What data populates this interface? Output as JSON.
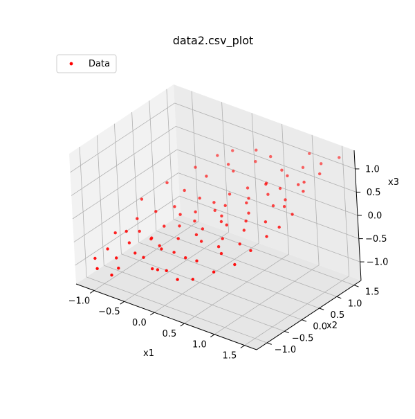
{
  "chart_data": {
    "type": "scatter",
    "projection": "3d",
    "title": "data2.csv_plot",
    "xlabel": "x1",
    "ylabel": "x2",
    "zlabel": "x3",
    "xlim": [
      -1.3,
      1.7
    ],
    "ylim": [
      -1.3,
      1.7
    ],
    "zlim": [
      -1.4,
      1.4
    ],
    "xticks": [
      -1.0,
      -0.5,
      0.0,
      0.5,
      1.0,
      1.5
    ],
    "xtick_labels": [
      "−1.0",
      "−0.5",
      "0.0",
      "0.5",
      "1.0",
      "1.5"
    ],
    "yticks": [
      -1.0,
      -0.5,
      0.0,
      0.5,
      1.0,
      1.5
    ],
    "ytick_labels": [
      "−1.0",
      "−0.5",
      "0.0",
      "0.5",
      "1.0",
      "1.5"
    ],
    "zticks": [
      -1.0,
      -0.5,
      0.0,
      0.5,
      1.0
    ],
    "ztick_labels": [
      "−1.0",
      "−0.5",
      "0.0",
      "0.5",
      "1.0"
    ],
    "grid": true,
    "legend": {
      "entries": [
        "Data"
      ],
      "placement": "top-left"
    },
    "marker_color": "#ff0000",
    "series": [
      {
        "name": "Data",
        "points": [
          [
            -1.2,
            -0.9,
            -1.0
          ],
          [
            -1.1,
            -0.7,
            -0.85
          ],
          [
            -1.05,
            -1.1,
            -1.05
          ],
          [
            -0.9,
            -0.8,
            -0.9
          ],
          [
            -0.85,
            -0.5,
            -0.7
          ],
          [
            -0.95,
            -0.4,
            -0.55
          ],
          [
            -0.7,
            -0.6,
            -0.8
          ],
          [
            -0.75,
            -1.0,
            -0.95
          ],
          [
            -0.6,
            -0.3,
            -0.6
          ],
          [
            -0.55,
            0.0,
            -0.45
          ],
          [
            -0.65,
            -0.2,
            -0.65
          ],
          [
            -0.5,
            -0.7,
            -0.75
          ],
          [
            -0.4,
            -0.4,
            -0.6
          ],
          [
            -0.35,
            0.1,
            -0.4
          ],
          [
            -0.45,
            0.3,
            -0.3
          ],
          [
            -0.3,
            -0.8,
            -0.85
          ],
          [
            -0.2,
            -0.2,
            -0.45
          ],
          [
            -0.25,
            0.4,
            -0.2
          ],
          [
            -0.1,
            -0.5,
            -0.55
          ],
          [
            -0.15,
            0.2,
            -0.25
          ],
          [
            0.0,
            -0.9,
            -0.7
          ],
          [
            0.05,
            -0.1,
            -0.3
          ],
          [
            -0.05,
            0.6,
            0.0
          ],
          [
            0.1,
            0.0,
            -0.2
          ],
          [
            0.15,
            -0.6,
            -0.5
          ],
          [
            0.2,
            0.5,
            0.1
          ],
          [
            0.25,
            -0.3,
            -0.25
          ],
          [
            0.3,
            0.2,
            -0.05
          ],
          [
            0.35,
            0.9,
            0.35
          ],
          [
            0.4,
            -0.7,
            -0.4
          ],
          [
            0.45,
            0.1,
            0.0
          ],
          [
            0.5,
            0.6,
            0.25
          ],
          [
            0.55,
            -0.2,
            -0.1
          ],
          [
            0.6,
            1.0,
            0.5
          ],
          [
            0.5,
            -1.0,
            -0.6
          ],
          [
            0.65,
            0.4,
            0.2
          ],
          [
            0.7,
            -0.5,
            -0.2
          ],
          [
            0.75,
            0.8,
            0.45
          ],
          [
            0.8,
            0.0,
            0.1
          ],
          [
            0.85,
            1.2,
            0.7
          ],
          [
            0.9,
            -0.3,
            0.0
          ],
          [
            0.95,
            0.6,
            0.4
          ],
          [
            1.0,
            1.4,
            0.85
          ],
          [
            1.05,
            0.2,
            0.3
          ],
          [
            1.1,
            -0.8,
            -0.1
          ],
          [
            1.15,
            1.0,
            0.75
          ],
          [
            1.2,
            0.5,
            0.55
          ],
          [
            1.25,
            1.5,
            1.0
          ],
          [
            1.3,
            -0.2,
            0.3
          ],
          [
            1.35,
            0.8,
            0.8
          ],
          [
            1.4,
            1.2,
            1.0
          ],
          [
            1.45,
            0.3,
            0.6
          ],
          [
            1.5,
            1.6,
            1.2
          ],
          [
            -0.8,
            0.2,
            -0.35
          ],
          [
            -0.6,
            0.7,
            -0.05
          ],
          [
            -0.4,
            1.0,
            0.2
          ],
          [
            -0.2,
            1.3,
            0.4
          ],
          [
            0.0,
            1.1,
            0.45
          ],
          [
            0.2,
            1.4,
            0.6
          ],
          [
            0.4,
            1.5,
            0.75
          ],
          [
            -1.0,
            0.0,
            -0.5
          ],
          [
            -1.15,
            0.4,
            -0.35
          ],
          [
            -0.95,
            0.8,
            -0.1
          ],
          [
            -0.7,
            1.2,
            0.15
          ],
          [
            -0.5,
            1.5,
            0.35
          ],
          [
            -0.3,
            1.6,
            0.5
          ],
          [
            0.1,
            1.6,
            0.7
          ],
          [
            0.7,
            1.3,
            0.7
          ],
          [
            1.0,
            1.6,
            1.05
          ],
          [
            -0.85,
            -0.2,
            -0.6
          ],
          [
            -0.15,
            -0.9,
            -0.75
          ],
          [
            0.3,
            -1.1,
            -0.65
          ],
          [
            0.8,
            -0.9,
            -0.35
          ],
          [
            1.2,
            -0.5,
            0.1
          ],
          [
            1.4,
            0.0,
            0.45
          ],
          [
            -0.35,
            0.7,
            -0.1
          ],
          [
            0.1,
            0.8,
            0.15
          ],
          [
            0.55,
            1.1,
            0.45
          ],
          [
            0.9,
            0.9,
            0.6
          ],
          [
            -0.6,
            0.4,
            -0.25
          ],
          [
            0.25,
            0.3,
            0.0
          ],
          [
            0.6,
            -0.4,
            -0.15
          ],
          [
            1.1,
            0.7,
            0.55
          ],
          [
            -1.2,
            -0.3,
            -0.75
          ],
          [
            -0.75,
            -1.2,
            -1.0
          ],
          [
            0.05,
            0.45,
            -0.05
          ],
          [
            0.45,
            0.75,
            0.25
          ],
          [
            0.75,
            0.15,
            0.2
          ],
          [
            1.25,
            1.0,
            0.85
          ],
          [
            -0.25,
            -0.6,
            -0.5
          ]
        ]
      }
    ]
  }
}
